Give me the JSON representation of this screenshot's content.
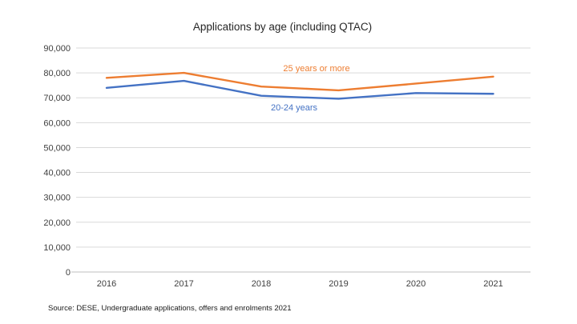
{
  "title": "Applications by age (including QTAC)",
  "source_note": "Source: DESE, Undergraduate applications, offers and enrolments 2021",
  "colors": {
    "orange_series": "#ED7D31",
    "blue_series": "#4472C4",
    "gridline": "#D9D9D9",
    "axis_line": "#BFBFBF",
    "tick_text": "#404040",
    "title_text": "#262626",
    "background": "#FFFFFF"
  },
  "chart_data": {
    "type": "line",
    "title": "Applications by age (including QTAC)",
    "categories": [
      "2016",
      "2017",
      "2018",
      "2019",
      "2020",
      "2021"
    ],
    "series": [
      {
        "name": "25 years or more",
        "color": "#ED7D31",
        "values": [
          78000,
          80000,
          74500,
          73000,
          75700,
          78500
        ]
      },
      {
        "name": "20-24 years",
        "color": "#4472C4",
        "values": [
          74000,
          76800,
          70800,
          69600,
          71900,
          71600
        ]
      }
    ],
    "ylim": [
      0,
      90000
    ],
    "ytick_step": 10000,
    "ytick_labels": [
      "0",
      "10,000",
      "20,000",
      "30,000",
      "40,000",
      "50,000",
      "60,000",
      "70,000",
      "80,000",
      "90,000"
    ],
    "grid": true,
    "legend_position": "inline-annotations",
    "annotations": [
      {
        "text": "25 years or more",
        "color": "#ED7D31",
        "x": 395,
        "y": 86
      },
      {
        "text": "20-24 years",
        "color": "#4472C4",
        "x": 367,
        "y": 135
      }
    ]
  }
}
